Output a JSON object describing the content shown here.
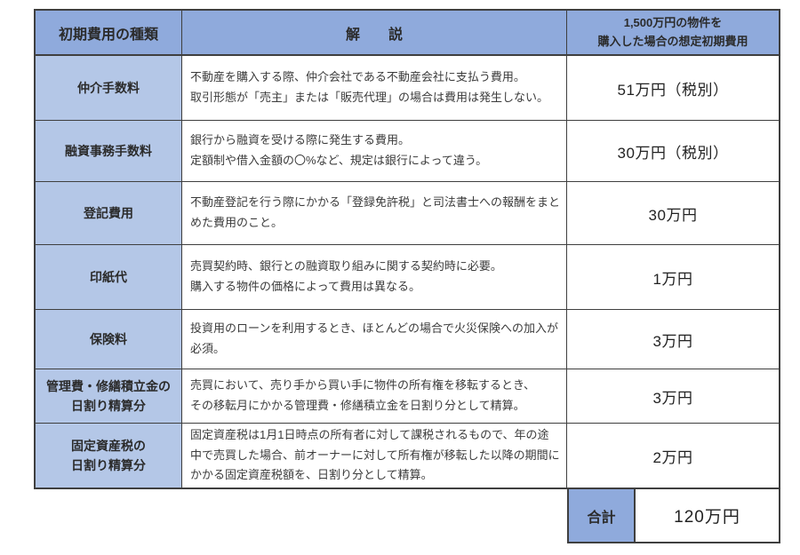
{
  "colors": {
    "header_bg": "#8faadc",
    "label_bg": "#b4c7e7",
    "border": "#3f3f3f",
    "body_bg": "#ffffff"
  },
  "table": {
    "headers": {
      "type": "初期費用の種類",
      "description": "解　　説",
      "estimate": [
        "1,500万円の物件を",
        "購入した場合の想定初期費用"
      ]
    },
    "rows": [
      {
        "type": "仲介手数料",
        "desc": [
          "不動産を購入する際、仲介会社である不動産会社に支払う費用。",
          "取引形態が「売主」または「販売代理」の場合は費用は発生しない。"
        ],
        "amount": "51万円（税別）"
      },
      {
        "type": "融資事務手数料",
        "desc": [
          "銀行から融資を受ける際に発生する費用。",
          "定額制や借入金額の〇%など、規定は銀行によって違う。"
        ],
        "amount": "30万円（税別）"
      },
      {
        "type": "登記費用",
        "desc": [
          "不動産登記を行う際にかかる「登録免許税」と司法書士への報酬をまと",
          "めた費用のこと。"
        ],
        "amount": "30万円"
      },
      {
        "type": "印紙代",
        "desc": [
          "売買契約時、銀行との融資取り組みに関する契約時に必要。",
          "購入する物件の価格によって費用は異なる。"
        ],
        "amount": "1万円"
      },
      {
        "type": "保険料",
        "desc": [
          "投資用のローンを利用するとき、ほとんどの場合で火災保険への加入が",
          "必須。"
        ],
        "amount": "3万円"
      },
      {
        "type": [
          "管理費・修繕積立金の",
          "日割り精算分"
        ],
        "desc": [
          "売買において、売り手から買い手に物件の所有権を移転するとき、",
          "その移転月にかかる管理費・修繕積立金を日割り分として精算。"
        ],
        "amount": "3万円"
      },
      {
        "type": [
          "固定資産税の",
          "日割り精算分"
        ],
        "desc": [
          "固定資産税は1月1日時点の所有者に対して課税されるもので、年の途",
          "中で売買した場合、前オーナーに対して所有権が移転した以降の期間に",
          "かかる固定資産税額を、日割り分として精算。"
        ],
        "amount": "2万円"
      }
    ],
    "total": {
      "label": "合計",
      "value": "120万円"
    }
  }
}
